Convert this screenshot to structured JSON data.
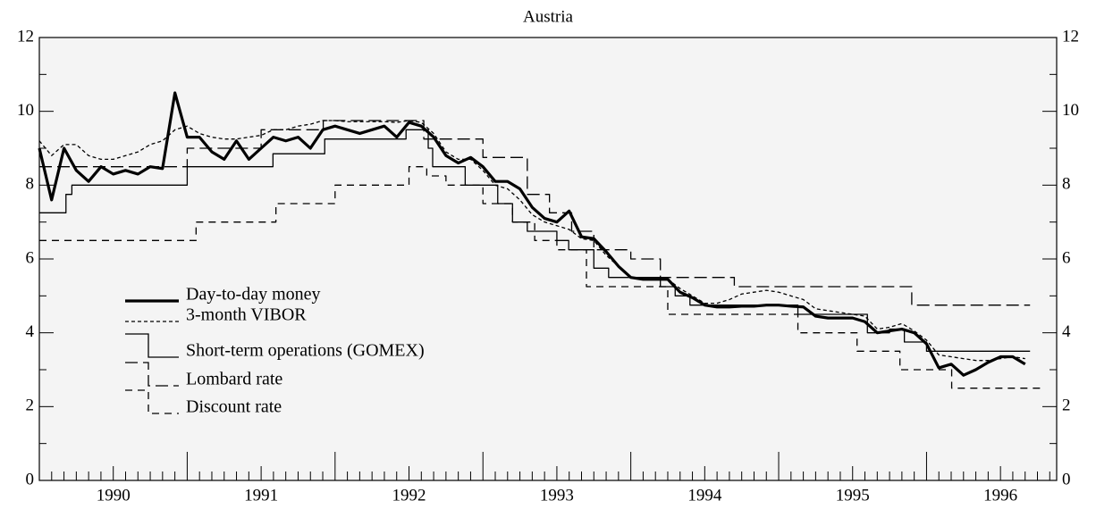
{
  "chart_data": {
    "type": "line",
    "title": "Austria",
    "xlim": [
      1990,
      1996.88
    ],
    "xticks": [
      {
        "value": 1990.5,
        "label": "1990"
      },
      {
        "value": 1991.5,
        "label": "1991"
      },
      {
        "value": 1992.5,
        "label": "1992"
      },
      {
        "value": 1993.5,
        "label": "1993"
      },
      {
        "value": 1994.5,
        "label": "1994"
      },
      {
        "value": 1995.5,
        "label": "1995"
      },
      {
        "value": 1996.5,
        "label": "1996"
      }
    ],
    "ylim": [
      0,
      12
    ],
    "yticks": [
      0,
      2,
      4,
      6,
      8,
      10,
      12
    ],
    "minor_yticks": [
      1,
      3,
      5,
      7,
      9,
      11
    ],
    "x": [
      1990,
      1990.083,
      1990.167,
      1990.25,
      1990.333,
      1990.417,
      1990.5,
      1990.583,
      1990.667,
      1990.75,
      1990.833,
      1990.917,
      1991,
      1991.083,
      1991.167,
      1991.25,
      1991.333,
      1991.417,
      1991.5,
      1991.583,
      1991.667,
      1991.75,
      1991.833,
      1991.917,
      1992,
      1992.083,
      1992.167,
      1992.25,
      1992.333,
      1992.417,
      1992.5,
      1992.583,
      1992.667,
      1992.75,
      1992.833,
      1992.917,
      1993,
      1993.083,
      1993.167,
      1993.25,
      1993.333,
      1993.417,
      1993.5,
      1993.583,
      1993.667,
      1993.75,
      1993.833,
      1993.917,
      1994,
      1994.083,
      1994.167,
      1994.25,
      1994.333,
      1994.417,
      1994.5,
      1994.583,
      1994.667,
      1994.75,
      1994.833,
      1994.917,
      1995,
      1995.083,
      1995.167,
      1995.25,
      1995.333,
      1995.417,
      1995.5,
      1995.583,
      1995.667,
      1995.75,
      1995.833,
      1995.917,
      1996,
      1996.083,
      1996.167,
      1996.25,
      1996.333,
      1996.417,
      1996.5,
      1996.583,
      1996.667
    ],
    "series": [
      {
        "name": "Day-to-day money",
        "color": "#000",
        "width": 3.2,
        "values": [
          9.0,
          7.6,
          9.0,
          8.4,
          8.1,
          8.5,
          8.3,
          8.4,
          8.3,
          8.5,
          8.45,
          10.5,
          9.3,
          9.3,
          8.9,
          8.7,
          9.2,
          8.7,
          9.0,
          9.3,
          9.2,
          9.3,
          9.0,
          9.5,
          9.6,
          9.5,
          9.4,
          9.5,
          9.6,
          9.3,
          9.7,
          9.6,
          9.3,
          8.8,
          8.6,
          8.75,
          8.5,
          8.1,
          8.1,
          7.9,
          7.4,
          7.1,
          7.0,
          7.3,
          6.6,
          6.55,
          6.2,
          5.8,
          5.5,
          5.45,
          5.45,
          5.45,
          5.1,
          4.95,
          4.75,
          4.7,
          4.7,
          4.72,
          4.72,
          4.75,
          4.75,
          4.72,
          4.7,
          4.45,
          4.4,
          4.4,
          4.4,
          4.3,
          4.0,
          4.05,
          4.1,
          4.0,
          3.7,
          3.05,
          3.15,
          2.85,
          3.0,
          3.2,
          3.35,
          3.35,
          3.15
        ]
      },
      {
        "name": "3-month VIBOR",
        "color": "#000",
        "width": 1.3,
        "dash": "4 3",
        "values": [
          9.2,
          8.8,
          9.1,
          9.1,
          8.8,
          8.7,
          8.7,
          8.8,
          8.9,
          9.1,
          9.2,
          9.5,
          9.6,
          9.4,
          9.3,
          9.25,
          9.25,
          9.3,
          9.35,
          9.5,
          9.5,
          9.6,
          9.65,
          9.75,
          9.75,
          9.72,
          9.72,
          9.72,
          9.72,
          9.7,
          9.75,
          9.7,
          9.4,
          8.9,
          8.7,
          8.7,
          8.4,
          8.0,
          7.9,
          7.6,
          7.2,
          7.0,
          6.9,
          6.8,
          6.55,
          6.5,
          6.1,
          5.8,
          5.5,
          5.45,
          5.45,
          5.45,
          5.2,
          5.0,
          4.8,
          4.8,
          4.9,
          5.05,
          5.1,
          5.15,
          5.1,
          5.0,
          4.9,
          4.65,
          4.6,
          4.55,
          4.5,
          4.45,
          4.1,
          4.15,
          4.25,
          4.05,
          3.8,
          3.4,
          3.35,
          3.3,
          3.25,
          3.25,
          3.3,
          3.35,
          3.3
        ]
      },
      {
        "name": "Short-term operations (GOMEX)",
        "color": "#000",
        "width": 1.3,
        "step": true,
        "x": [
          1990,
          1990.18,
          1990.22,
          1991,
          1991.58,
          1991.93,
          1992.48,
          1992.63,
          1992.66,
          1992.88,
          1993.1,
          1993.2,
          1993.3,
          1993.5,
          1993.58,
          1993.75,
          1993.85,
          1994.2,
          1994.3,
          1994.4,
          1995.13,
          1995.6,
          1995.75,
          1995.85,
          1996,
          1996.7
        ],
        "values": [
          7.25,
          7.75,
          8.0,
          8.5,
          8.85,
          9.25,
          9.5,
          9.0,
          8.5,
          8.0,
          7.5,
          7.0,
          6.75,
          6.5,
          6.25,
          5.75,
          5.5,
          5.25,
          5.0,
          4.75,
          4.5,
          4.0,
          4.1,
          3.75,
          3.5,
          3.5
        ]
      },
      {
        "name": "Lombard rate",
        "color": "#000",
        "width": 1.3,
        "dash": "14 6",
        "step": true,
        "x": [
          1990,
          1991,
          1991.5,
          1991.92,
          1992.6,
          1993.0,
          1993.3,
          1993.45,
          1993.6,
          1993.75,
          1994.0,
          1994.2,
          1994.7,
          1995.9,
          1996.7
        ],
        "values": [
          8.5,
          9.0,
          9.5,
          9.75,
          9.25,
          8.75,
          7.75,
          7.25,
          6.75,
          6.25,
          6.0,
          5.5,
          5.25,
          4.75,
          4.75
        ]
      },
      {
        "name": "Discount rate",
        "color": "#000",
        "width": 1.3,
        "dash": "8 6",
        "step": true,
        "x": [
          1990,
          1991.06,
          1991.6,
          1992.0,
          1992.5,
          1992.62,
          1992.75,
          1993.0,
          1993.2,
          1993.35,
          1993.5,
          1993.7,
          1994.25,
          1995.13,
          1995.53,
          1995.82,
          1996.17,
          1996.78
        ],
        "values": [
          6.5,
          7.0,
          7.5,
          8.0,
          8.5,
          8.25,
          8.0,
          7.5,
          7.0,
          6.5,
          6.25,
          5.25,
          4.5,
          4.0,
          3.5,
          3.0,
          2.5,
          2.5
        ]
      }
    ]
  }
}
